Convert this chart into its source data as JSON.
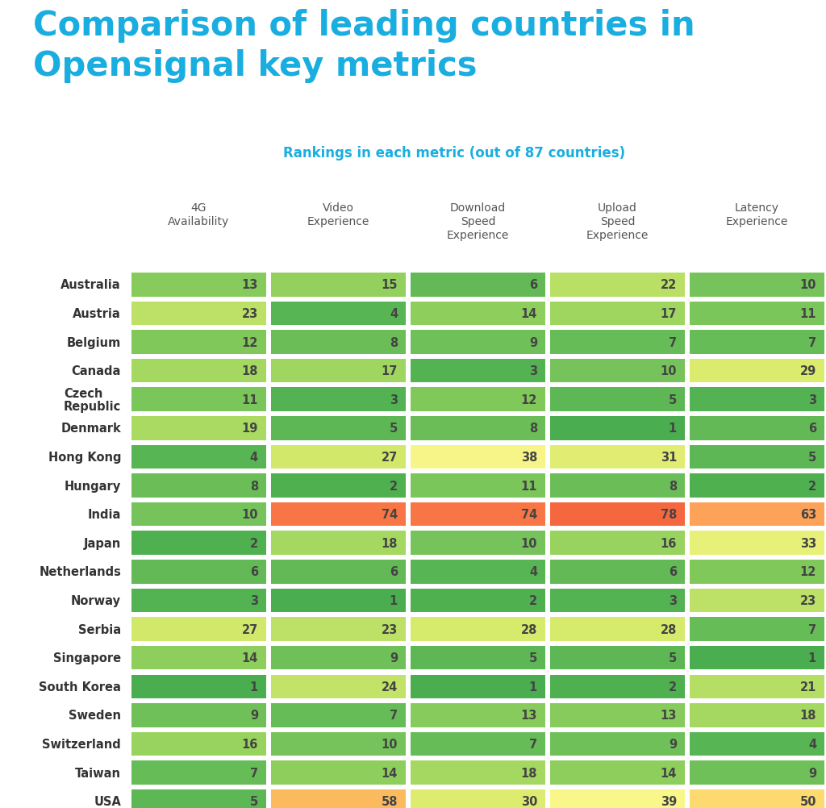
{
  "title": "Comparison of leading countries in\nOpensignal key metrics",
  "subtitle": "Rankings in each metric (out of 87 countries)",
  "title_color": "#1AAEE0",
  "subtitle_color": "#1AAEE0",
  "bg_color": "#FFFFFF",
  "columns": [
    "4G\nAvailability",
    "Video\nExperience",
    "Download\nSpeed\nExperience",
    "Upload\nSpeed\nExperience",
    "Latency\nExperience"
  ],
  "countries": [
    "Australia",
    "Austria",
    "Belgium",
    "Canada",
    "Czech\nRepublic",
    "Denmark",
    "Hong Kong",
    "Hungary",
    "India",
    "Japan",
    "Netherlands",
    "Norway",
    "Serbia",
    "Singapore",
    "South Korea",
    "Sweden",
    "Switzerland",
    "Taiwan",
    "USA"
  ],
  "data": [
    [
      13,
      15,
      6,
      22,
      10
    ],
    [
      23,
      4,
      14,
      17,
      11
    ],
    [
      12,
      8,
      9,
      7,
      7
    ],
    [
      18,
      17,
      3,
      10,
      29
    ],
    [
      11,
      3,
      12,
      5,
      3
    ],
    [
      19,
      5,
      8,
      1,
      6
    ],
    [
      4,
      27,
      38,
      31,
      5
    ],
    [
      8,
      2,
      11,
      8,
      2
    ],
    [
      10,
      74,
      74,
      78,
      63
    ],
    [
      2,
      18,
      10,
      16,
      33
    ],
    [
      6,
      6,
      4,
      6,
      12
    ],
    [
      3,
      1,
      2,
      3,
      23
    ],
    [
      27,
      23,
      28,
      28,
      7
    ],
    [
      14,
      9,
      5,
      5,
      1
    ],
    [
      1,
      24,
      1,
      2,
      21
    ],
    [
      9,
      7,
      13,
      13,
      18
    ],
    [
      16,
      10,
      7,
      9,
      4
    ],
    [
      7,
      14,
      18,
      14,
      9
    ],
    [
      5,
      58,
      30,
      39,
      50
    ]
  ],
  "max_rank": 87,
  "color_stops": [
    [
      0.0,
      [
        0.29,
        0.68,
        0.31
      ]
    ],
    [
      0.1,
      [
        0.45,
        0.76,
        0.35
      ]
    ],
    [
      0.2,
      [
        0.65,
        0.85,
        0.38
      ]
    ],
    [
      0.32,
      [
        0.85,
        0.92,
        0.42
      ]
    ],
    [
      0.45,
      [
        0.99,
        0.97,
        0.55
      ]
    ],
    [
      0.55,
      [
        0.99,
        0.88,
        0.45
      ]
    ],
    [
      0.65,
      [
        0.99,
        0.75,
        0.38
      ]
    ],
    [
      0.78,
      [
        0.99,
        0.55,
        0.32
      ]
    ],
    [
      1.0,
      [
        0.93,
        0.27,
        0.18
      ]
    ]
  ],
  "cell_text_color": "#444444",
  "country_text_color": "#333333",
  "header_text_color": "#555555"
}
